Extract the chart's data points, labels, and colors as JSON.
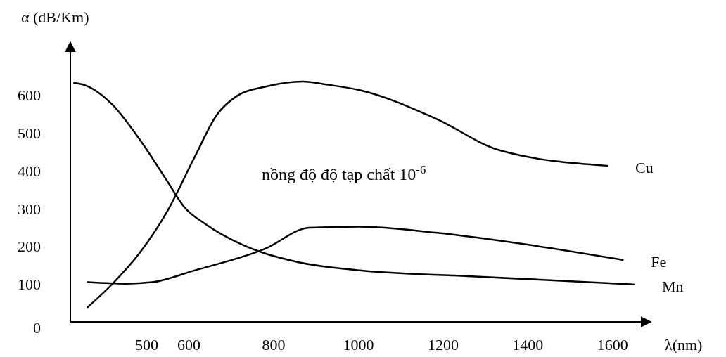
{
  "chart_data": {
    "type": "line",
    "xlabel": "λ(nm)",
    "ylabel": "α (dB/Km)",
    "xlim": [
      320,
      1690
    ],
    "ylim": [
      0,
      740
    ],
    "xticks": [
      500,
      600,
      800,
      1000,
      1200,
      1400,
      1600
    ],
    "yticks": [
      0,
      100,
      200,
      300,
      400,
      500,
      600
    ],
    "grid": false,
    "marker": "none",
    "line_style": "solid",
    "annotations": [
      "nồng độ độ tạp chất 10$^{-6}$"
    ],
    "series": [
      {
        "name": "Cu",
        "color": "#000000",
        "x": [
          361,
          418,
          484,
          550,
          613,
          666,
          714,
          779,
          869,
          925,
          1003,
          1182,
          1333,
          1587
        ],
        "values": [
          39,
          99,
          183,
          295,
          435,
          548,
          598,
          622,
          636,
          628,
          613,
          538,
          454,
          413
        ]
      },
      {
        "name": "Fe",
        "color": "#000000",
        "x": [
          361,
          451,
          513,
          613,
          779,
          884,
          1004,
          1182,
          1413,
          1624
        ],
        "values": [
          105,
          101,
          105,
          136,
          193,
          249,
          252,
          236,
          202,
          164
        ]
      },
      {
        "name": "Mn",
        "color": "#000000",
        "x": [
          329,
          355,
          418,
          484,
          550,
          588,
          640,
          722,
          854,
          1004,
          1259,
          1650
        ],
        "values": [
          632,
          626,
          576,
          482,
          370,
          305,
          258,
          206,
          159,
          136,
          121,
          99
        ]
      }
    ]
  }
}
